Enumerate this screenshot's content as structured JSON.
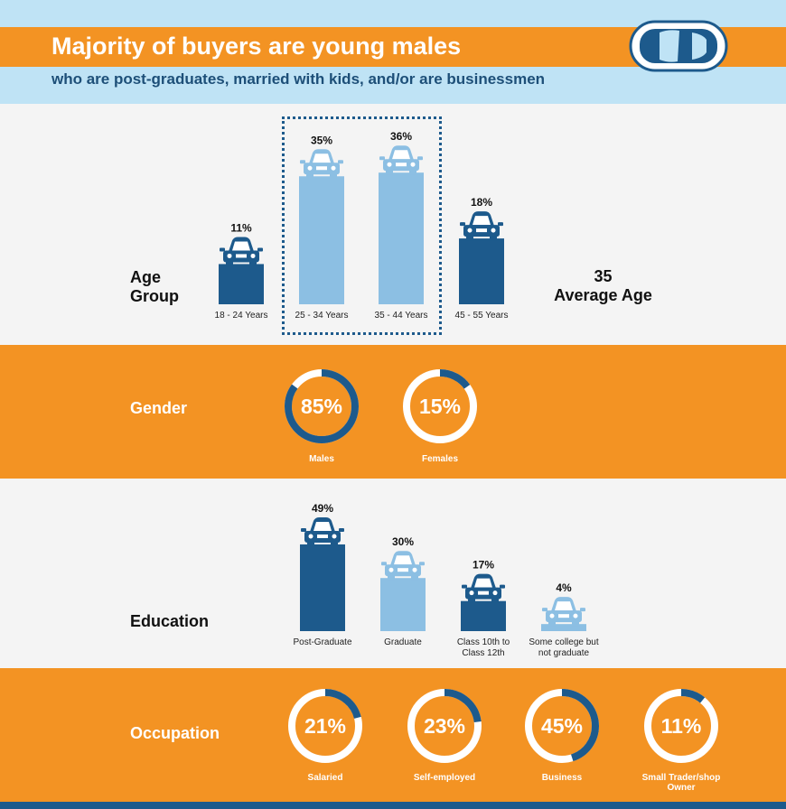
{
  "header": {
    "title": "Majority of buyers are young males",
    "subtitle": "who are post-graduates, married with kids, and/or are businessmen",
    "icon": "car-top-view-icon"
  },
  "age": {
    "label_line1": "Age",
    "label_line2": "Group",
    "average_value": "35",
    "average_label": "Average Age"
  },
  "gender": {
    "label": "Gender"
  },
  "education": {
    "label": "Education"
  },
  "occupation": {
    "label": "Occupation"
  },
  "colors": {
    "orange": "#f39323",
    "dark_blue": "#1d5a8c",
    "light_blue": "#8cbfe3",
    "header_blue": "#bfe3f5",
    "donut_track": "#ffffff"
  },
  "chart_data": [
    {
      "type": "bar",
      "name": "age",
      "categories": [
        "18 - 24 Years",
        "25 - 34 Years",
        "35 - 44 Years",
        "45 - 55 Years"
      ],
      "values": [
        11,
        35,
        36,
        18
      ],
      "value_labels": [
        "11%",
        "35%",
        "36%",
        "18%"
      ],
      "highlight": [
        false,
        true,
        true,
        false
      ],
      "ylim": [
        0,
        40
      ]
    },
    {
      "type": "pie",
      "name": "gender",
      "categories": [
        "Males",
        "Females"
      ],
      "values": [
        85,
        15
      ],
      "value_labels": [
        "85%",
        "15%"
      ]
    },
    {
      "type": "bar",
      "name": "education",
      "categories": [
        "Post-Graduate",
        "Graduate",
        "Class 10th to Class 12th",
        "Some college but not graduate"
      ],
      "category_lines": [
        [
          "Post-Graduate"
        ],
        [
          "Graduate"
        ],
        [
          "Class 10th to",
          "Class 12th"
        ],
        [
          "Some college but",
          "not graduate"
        ]
      ],
      "values": [
        49,
        30,
        17,
        4
      ],
      "value_labels": [
        "49%",
        "30%",
        "17%",
        "4%"
      ],
      "highlight": [
        true,
        false,
        true,
        false
      ],
      "ylim": [
        0,
        50
      ]
    },
    {
      "type": "pie",
      "name": "occupation",
      "categories": [
        "Salaried",
        "Self-employed",
        "Business",
        "Small Trader/shop Owner"
      ],
      "category_lines": [
        [
          "Salaried"
        ],
        [
          "Self-employed"
        ],
        [
          "Business"
        ],
        [
          "Small Trader/shop",
          "Owner"
        ]
      ],
      "values": [
        21,
        23,
        45,
        11
      ],
      "value_labels": [
        "21%",
        "23%",
        "45%",
        "11%"
      ]
    }
  ]
}
